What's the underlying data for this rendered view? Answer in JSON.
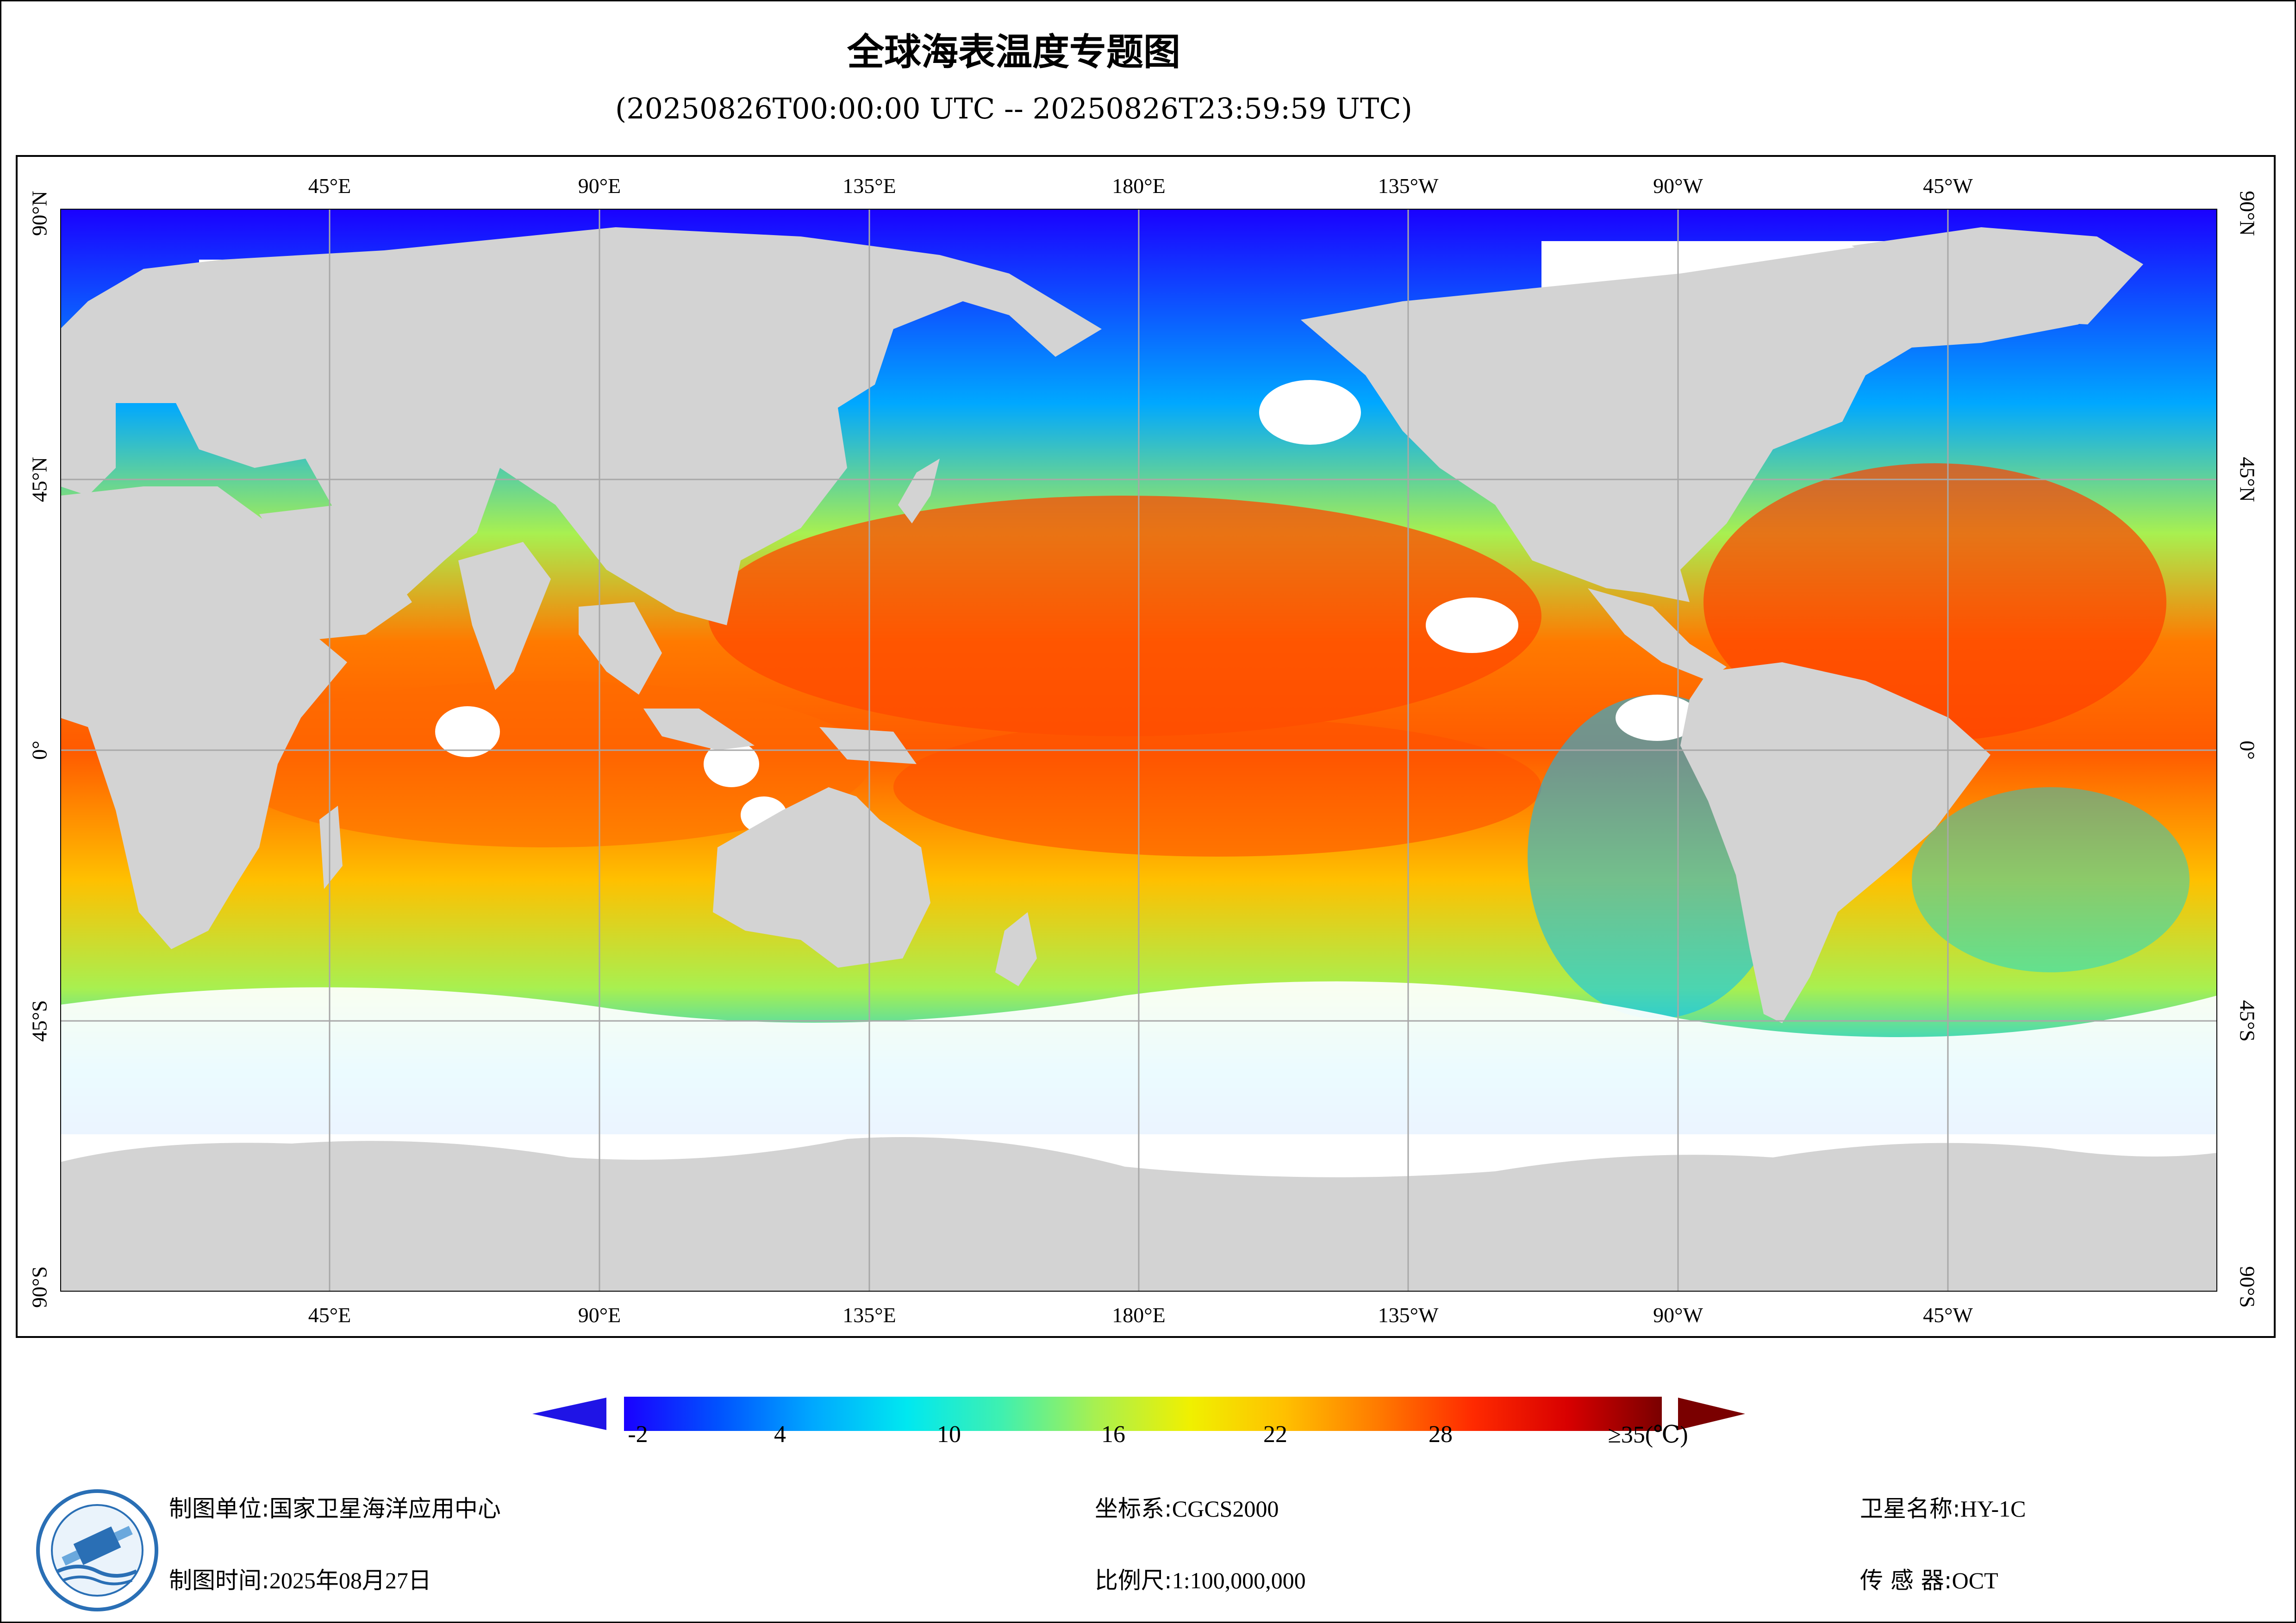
{
  "title": "全球海表温度专题图",
  "subtitle": "(20250826T00:00:00 UTC -- 20250826T23:59:59 UTC)",
  "map": {
    "lon_labels": [
      "45°E",
      "90°E",
      "135°E",
      "180°E",
      "135°W",
      "90°W",
      "45°W"
    ],
    "lat_labels": [
      "90°N",
      "45°N",
      "0°",
      "45°S",
      "90°S"
    ],
    "colors": {
      "land": "#d3d3d3",
      "no_data": "#ffffff",
      "grid": "#a8a8a8"
    }
  },
  "colorbar": {
    "tick_labels": [
      "-2",
      "4",
      "10",
      "16",
      "22",
      "28",
      "≥35(℃)"
    ],
    "min": -2,
    "max": 35,
    "low_arrow_color": "#1f14e6",
    "high_arrow_color": "#7a0000",
    "stops": [
      "#1a00ff",
      "#0052ff",
      "#00a8ff",
      "#00e8f0",
      "#3ff0b0",
      "#a8f050",
      "#f0f000",
      "#ffc000",
      "#ff7a00",
      "#ff2a00",
      "#d80000",
      "#7a0000"
    ]
  },
  "footer": {
    "unit_label": "制图单位:",
    "unit_value": "国家卫星海洋应用中心",
    "time_label": "制图时间:",
    "time_value": "2025年08月27日",
    "coord_label": "坐标系:",
    "coord_value": "CGCS2000",
    "scale_label": "比例尺:",
    "scale_value": "1:100,000,000",
    "satellite_label": "卫星名称:",
    "satellite_value": "HY-1C",
    "sensor_label": "传 感 器:",
    "sensor_value": "OCT"
  }
}
